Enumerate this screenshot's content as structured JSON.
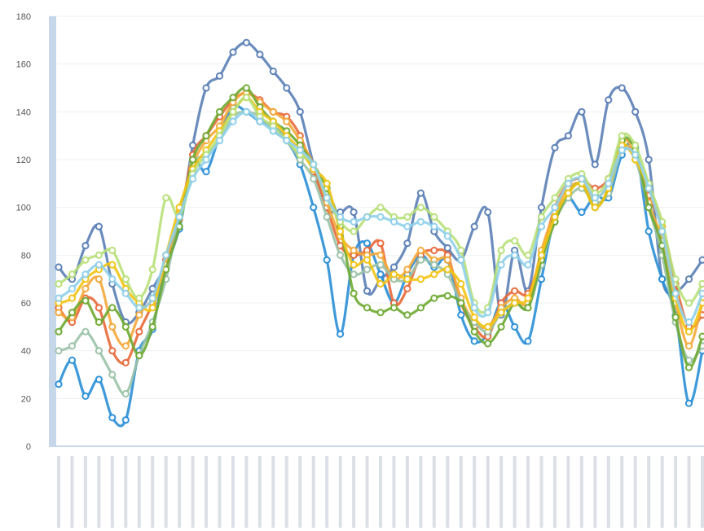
{
  "chart_data": {
    "type": "line",
    "title": "",
    "xlabel": "",
    "ylabel": "",
    "ylim": [
      0,
      180
    ],
    "yticks": [
      0,
      20,
      40,
      60,
      80,
      100,
      120,
      140,
      160,
      180
    ],
    "grid": true,
    "legend": "none",
    "x_tick_labels_legible": false,
    "series": [
      {
        "color": "#5b7fb5",
        "values": [
          75,
          70,
          84,
          92,
          68,
          52,
          56,
          66,
          76,
          92,
          126,
          150,
          155,
          165,
          169,
          164,
          157,
          150,
          140,
          118,
          100,
          98,
          98,
          65,
          70,
          75,
          85,
          106,
          90,
          83,
          78,
          92,
          98,
          55,
          82,
          65,
          100,
          125,
          130,
          140,
          118,
          145,
          150,
          140,
          120,
          70,
          65,
          70,
          78
        ]
      },
      {
        "color": "#2a8fd6",
        "values": [
          26,
          36,
          21,
          28,
          12,
          11,
          40,
          49,
          78,
          91,
          119,
          115,
          130,
          142,
          140,
          136,
          134,
          128,
          118,
          100,
          78,
          47,
          80,
          85,
          72,
          60,
          72,
          80,
          75,
          78,
          55,
          44,
          47,
          60,
          50,
          44,
          70,
          96,
          104,
          98,
          105,
          104,
          122,
          125,
          90,
          70,
          55,
          18,
          40
        ]
      },
      {
        "color": "#e8693a",
        "values": [
          58,
          52,
          62,
          58,
          40,
          35,
          48,
          60,
          78,
          95,
          122,
          130,
          138,
          145,
          148,
          145,
          140,
          138,
          130,
          115,
          100,
          84,
          80,
          82,
          85,
          60,
          66,
          80,
          82,
          80,
          60,
          50,
          46,
          60,
          65,
          64,
          80,
          100,
          110,
          112,
          108,
          112,
          125,
          122,
          105,
          92,
          68,
          50,
          55
        ]
      },
      {
        "color": "#f4a93a",
        "values": [
          56,
          54,
          66,
          70,
          50,
          42,
          55,
          62,
          76,
          98,
          118,
          128,
          134,
          144,
          148,
          144,
          140,
          136,
          128,
          118,
          102,
          88,
          82,
          80,
          80,
          70,
          74,
          82,
          78,
          78,
          62,
          52,
          50,
          58,
          62,
          60,
          82,
          98,
          108,
          110,
          104,
          110,
          128,
          122,
          102,
          86,
          60,
          42,
          60
        ]
      },
      {
        "color": "#9bc2a8",
        "values": [
          40,
          42,
          48,
          40,
          30,
          22,
          38,
          52,
          70,
          96,
          118,
          122,
          128,
          138,
          140,
          138,
          132,
          128,
          120,
          112,
          96,
          80,
          72,
          74,
          76,
          70,
          70,
          78,
          76,
          72,
          60,
          52,
          48,
          56,
          60,
          58,
          76,
          94,
          104,
          108,
          102,
          106,
          124,
          120,
          100,
          80,
          52,
          36,
          42
        ]
      },
      {
        "color": "#6faa32",
        "values": [
          48,
          56,
          61,
          52,
          58,
          50,
          38,
          50,
          74,
          92,
          120,
          130,
          140,
          146,
          150,
          142,
          136,
          132,
          126,
          118,
          108,
          92,
          64,
          58,
          56,
          58,
          55,
          58,
          62,
          63,
          60,
          48,
          43,
          50,
          60,
          58,
          78,
          94,
          106,
          110,
          100,
          108,
          128,
          124,
          100,
          84,
          54,
          33,
          46
        ]
      },
      {
        "color": "#f2c414",
        "values": [
          60,
          62,
          70,
          74,
          76,
          66,
          60,
          58,
          80,
          100,
          116,
          124,
          132,
          140,
          146,
          140,
          136,
          130,
          124,
          116,
          110,
          90,
          76,
          78,
          68,
          72,
          70,
          70,
          72,
          74,
          68,
          54,
          50,
          56,
          60,
          62,
          80,
          96,
          106,
          110,
          100,
          108,
          126,
          120,
          108,
          92,
          62,
          48,
          60
        ]
      },
      {
        "color": "#b8e078",
        "values": [
          68,
          72,
          78,
          80,
          82,
          70,
          62,
          74,
          104,
          96,
          114,
          122,
          130,
          140,
          146,
          138,
          134,
          128,
          122,
          118,
          104,
          94,
          90,
          96,
          100,
          96,
          96,
          100,
          96,
          90,
          82,
          60,
          58,
          82,
          86,
          80,
          96,
          104,
          112,
          114,
          106,
          112,
          130,
          126,
          110,
          94,
          70,
          60,
          68
        ]
      },
      {
        "color": "#8fd0ea",
        "values": [
          62,
          66,
          72,
          76,
          70,
          64,
          58,
          62,
          80,
          96,
          112,
          120,
          128,
          136,
          140,
          136,
          132,
          128,
          124,
          118,
          104,
          96,
          94,
          96,
          96,
          94,
          92,
          94,
          92,
          88,
          78,
          58,
          56,
          76,
          80,
          76,
          92,
          100,
          110,
          112,
          104,
          110,
          124,
          122,
          108,
          90,
          64,
          52,
          64
        ]
      }
    ]
  }
}
